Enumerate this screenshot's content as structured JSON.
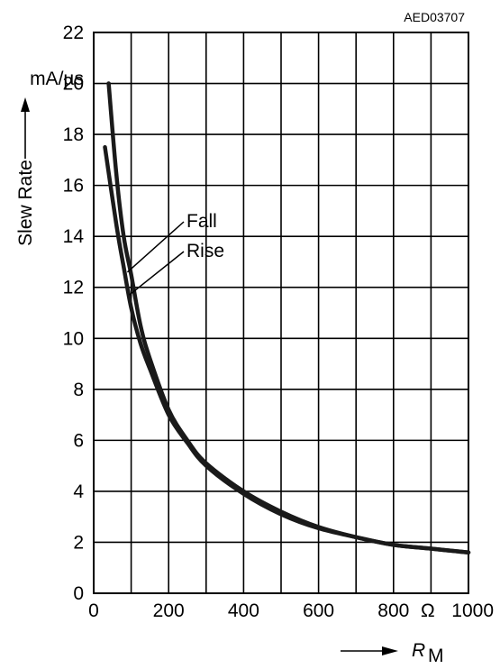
{
  "chart_data": {
    "type": "line",
    "code": "AED03707",
    "ylabel": "Slew Rate",
    "yunit": "mA/µs",
    "xunit": "Ω",
    "xlabel_symbol": "R",
    "xlabel_subscript": "M",
    "xlim": [
      0,
      1000
    ],
    "ylim": [
      0,
      22
    ],
    "grid": true,
    "x_ticks": [
      "0",
      "200",
      "400",
      "600",
      "800",
      "1000"
    ],
    "y_ticks": [
      "0",
      "2",
      "4",
      "6",
      "8",
      "10",
      "12",
      "14",
      "16",
      "18",
      "20",
      "22"
    ],
    "annotations": [
      "Fall",
      "Rise"
    ],
    "series": [
      {
        "name": "Fall",
        "x": [
          40,
          60,
          80,
          100,
          125,
          150,
          200,
          250,
          300,
          400,
          500,
          600,
          700,
          800,
          900,
          1000
        ],
        "y": [
          20,
          16.5,
          14,
          12.5,
          10.5,
          9.2,
          7.2,
          6.0,
          5.1,
          4.0,
          3.2,
          2.6,
          2.2,
          1.9,
          1.75,
          1.6
        ]
      },
      {
        "name": "Rise",
        "x": [
          30,
          60,
          80,
          100,
          125,
          150,
          200,
          250,
          300,
          400,
          500,
          600,
          700,
          800,
          900,
          1000
        ],
        "y": [
          17.5,
          14.5,
          12.8,
          11.2,
          9.8,
          8.8,
          7.0,
          5.9,
          5.0,
          3.9,
          3.1,
          2.55,
          2.2,
          1.9,
          1.75,
          1.6
        ]
      }
    ]
  }
}
